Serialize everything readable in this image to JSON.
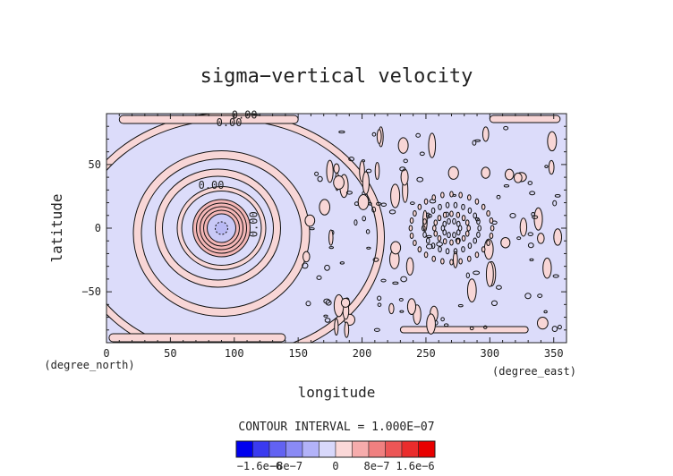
{
  "chart_data": {
    "type": "heatmap",
    "title": "sigma−vertical velocity",
    "xlabel": "longitude",
    "ylabel": "latitude",
    "x_unit": "(degree_east)",
    "y_unit": "(degree_north)",
    "xlim": [
      0,
      360
    ],
    "ylim": [
      -90,
      90
    ],
    "x_ticks": [
      0,
      50,
      100,
      150,
      200,
      250,
      300,
      350
    ],
    "y_ticks": [
      -50,
      0,
      50
    ],
    "x_tick_labels": [
      "0",
      "50",
      "100",
      "150",
      "200",
      "250",
      "300",
      "350"
    ],
    "y_tick_labels": [
      "−50",
      "0",
      "50"
    ],
    "contour_labels": [
      {
        "text": "0.00",
        "lon": 108,
        "lat": 86
      },
      {
        "text": "0.00",
        "lon": 96,
        "lat": 80
      },
      {
        "text": "0.00",
        "lon": 82,
        "lat": 31
      },
      {
        "text": "0.00",
        "lon": 118,
        "lat": 3,
        "rotate": -90
      }
    ],
    "contour_interval_text": "CONTOUR INTERVAL = 1.000E−07",
    "colorbar": {
      "colors": [
        "#0000ee",
        "#3a3aef",
        "#6262f2",
        "#8a8af5",
        "#b2b2f8",
        "#d8d8fb",
        "#fbd8d8",
        "#f6acac",
        "#f08080",
        "#ec5656",
        "#ea2c2c",
        "#e80000"
      ],
      "tick_labels": [
        "−1.6e−6",
        "−8e−7",
        "0",
        "8e−7",
        "1.6e−6"
      ]
    },
    "colors": {
      "background": "#dcdcfa",
      "positive": "#f8d6d6",
      "contour": "#111111"
    },
    "features": [
      {
        "kind": "concentric_rings",
        "center_lon": 90,
        "center_lat": 0,
        "description_level": "strong vortex with ring-shaped contours"
      },
      {
        "kind": "concentric_rings",
        "center_lon": 270,
        "center_lat": 0,
        "description_level": "weak pattern of small cells"
      }
    ]
  }
}
